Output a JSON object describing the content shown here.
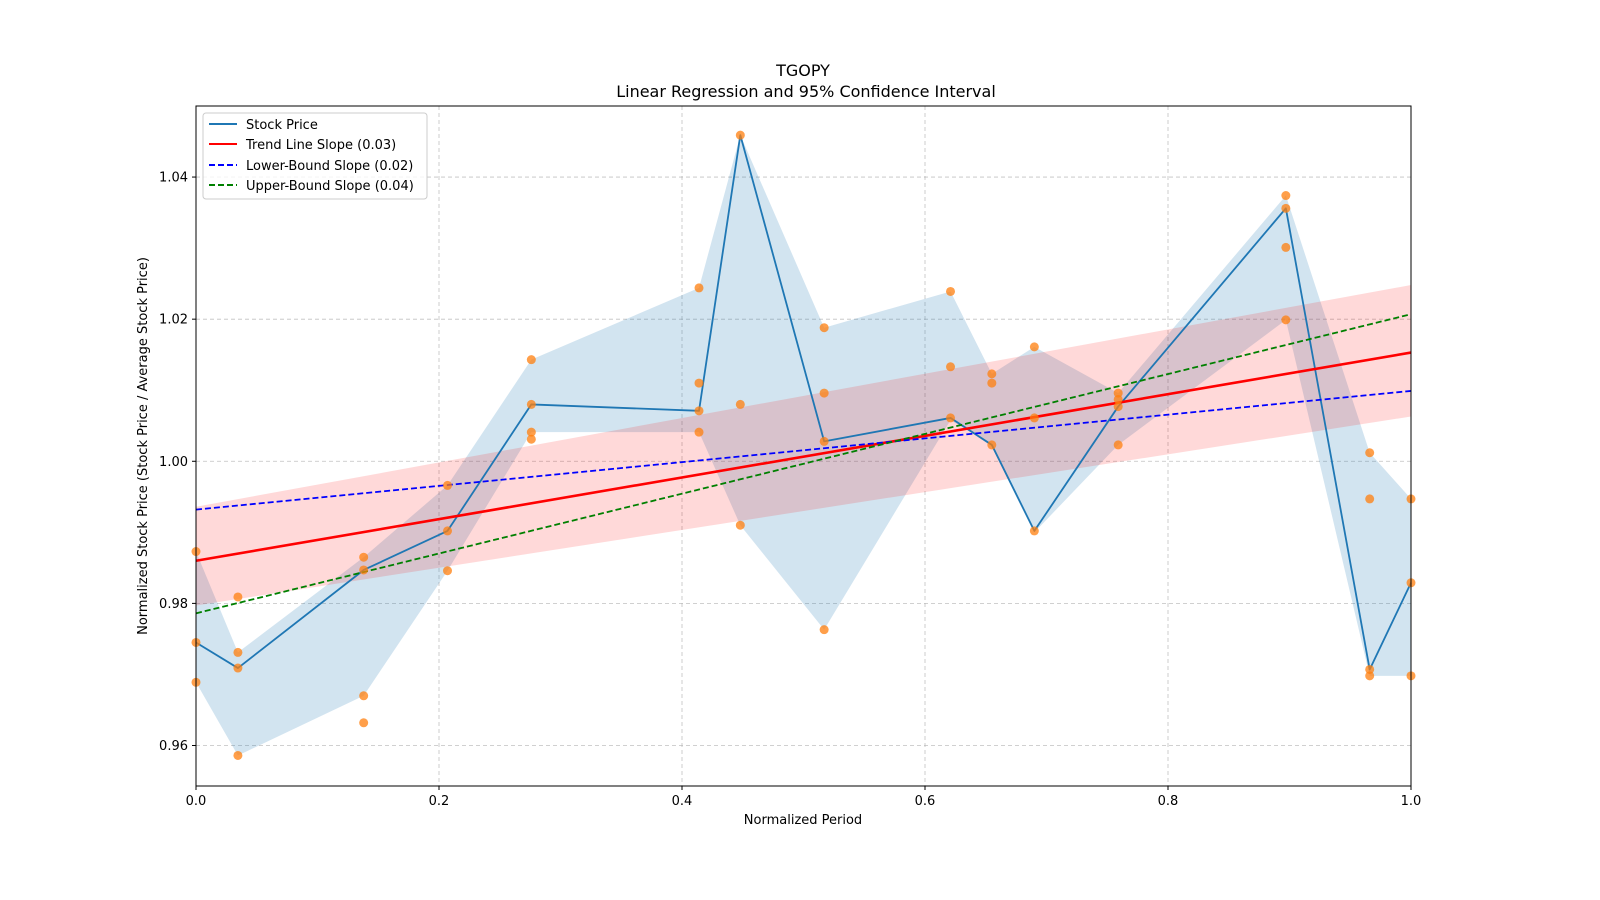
{
  "chart_data": {
    "type": "line",
    "title": "TGOPY",
    "subtitle": "Linear Regression and 95% Confidence Interval",
    "xlabel": "Normalized Period",
    "ylabel": "Normalized Stock Price (Stock Price / Average Stock Price)",
    "xlim": [
      0.0,
      1.0
    ],
    "ylim": [
      0.9543,
      1.05
    ],
    "xticks": [
      0.0,
      0.2,
      0.4,
      0.6,
      0.8,
      1.0
    ],
    "xtick_labels": [
      "0.0",
      "0.2",
      "0.4",
      "0.6",
      "0.8",
      "1.0"
    ],
    "yticks": [
      0.96,
      0.98,
      1.0,
      1.02,
      1.04
    ],
    "ytick_labels": [
      "0.96",
      "0.98",
      "1.00",
      "1.02",
      "1.04"
    ],
    "grid": true,
    "legend_position": "top-left",
    "legend": [
      {
        "label": "Stock Price",
        "color": "#1f77b4",
        "style": "solid"
      },
      {
        "label": "Trend Line Slope (0.03)",
        "color": "#ff0000",
        "style": "solid"
      },
      {
        "label": "Lower-Bound Slope (0.02)",
        "color": "#0000ff",
        "style": "dashed"
      },
      {
        "label": "Upper-Bound Slope (0.04)",
        "color": "#008000",
        "style": "dashed"
      }
    ],
    "series": [
      {
        "name": "Stock Price",
        "color": "#1f77b4",
        "x": [
          0.0,
          0.0345,
          0.138,
          0.207,
          0.276,
          0.414,
          0.448,
          0.517,
          0.621,
          0.655,
          0.69,
          0.759,
          0.897,
          0.966,
          1.0
        ],
        "y": [
          0.9745,
          0.9709,
          0.9847,
          0.9902,
          1.008,
          1.0071,
          1.0459,
          1.0028,
          1.0061,
          1.0023,
          0.9902,
          1.0077,
          1.0356,
          0.9707,
          0.9829
        ]
      },
      {
        "name": "Trend Line Slope (0.03)",
        "color": "#ff0000",
        "x": [
          0.0,
          1.0
        ],
        "y": [
          0.986,
          1.0153
        ]
      },
      {
        "name": "Lower-Bound Slope (0.02)",
        "color": "#0000ff",
        "x": [
          0.0,
          1.0
        ],
        "y": [
          0.9932,
          1.0099
        ]
      },
      {
        "name": "Upper-Bound Slope (0.04)",
        "color": "#008000",
        "x": [
          0.0,
          1.0
        ],
        "y": [
          0.9786,
          1.0207
        ]
      }
    ],
    "price_range_band": {
      "color": "#1f77b4",
      "x": [
        0.0,
        0.0345,
        0.138,
        0.207,
        0.276,
        0.414,
        0.448,
        0.517,
        0.621,
        0.655,
        0.69,
        0.759,
        0.897,
        0.966,
        1.0
      ],
      "lower": [
        0.9689,
        0.9586,
        0.967,
        0.9846,
        1.0041,
        1.0041,
        0.991,
        0.9763,
        1.0058,
        1.0023,
        0.99,
        1.0023,
        1.0199,
        0.9698,
        0.9698
      ],
      "upper": [
        0.9873,
        0.9731,
        0.9865,
        0.9966,
        1.0143,
        1.0244,
        1.0459,
        1.0188,
        1.0239,
        1.0123,
        1.0161,
        1.0096,
        1.0374,
        1.0012,
        0.9947
      ]
    },
    "confidence_band": {
      "color": "#ff0000",
      "x": [
        0.0,
        1.0
      ],
      "lower": [
        0.9797,
        1.0063
      ],
      "upper": [
        0.9936,
        1.0248
      ]
    },
    "scatter": {
      "color": "#ff7f0e",
      "points": [
        [
          0.0,
          0.9873
        ],
        [
          0.0,
          0.9745
        ],
        [
          0.0,
          0.9689
        ],
        [
          0.0345,
          0.9809
        ],
        [
          0.0345,
          0.9731
        ],
        [
          0.0345,
          0.9709
        ],
        [
          0.0345,
          0.9586
        ],
        [
          0.138,
          0.9865
        ],
        [
          0.138,
          0.9847
        ],
        [
          0.138,
          0.967
        ],
        [
          0.138,
          0.9632
        ],
        [
          0.207,
          0.9966
        ],
        [
          0.207,
          0.9902
        ],
        [
          0.207,
          0.9846
        ],
        [
          0.276,
          1.0143
        ],
        [
          0.276,
          1.008
        ],
        [
          0.276,
          1.0041
        ],
        [
          0.276,
          1.0031
        ],
        [
          0.414,
          1.0244
        ],
        [
          0.414,
          1.011
        ],
        [
          0.414,
          1.0071
        ],
        [
          0.414,
          1.0041
        ],
        [
          0.448,
          1.0459
        ],
        [
          0.448,
          1.008
        ],
        [
          0.448,
          0.991
        ],
        [
          0.517,
          1.0188
        ],
        [
          0.517,
          1.0096
        ],
        [
          0.517,
          1.0028
        ],
        [
          0.517,
          0.9763
        ],
        [
          0.621,
          1.0239
        ],
        [
          0.621,
          1.0133
        ],
        [
          0.621,
          1.0061
        ],
        [
          0.655,
          1.0123
        ],
        [
          0.655,
          1.011
        ],
        [
          0.655,
          1.0023
        ],
        [
          0.69,
          1.0161
        ],
        [
          0.69,
          1.0061
        ],
        [
          0.69,
          0.9902
        ],
        [
          0.759,
          1.0096
        ],
        [
          0.759,
          1.0087
        ],
        [
          0.759,
          1.0077
        ],
        [
          0.759,
          1.0023
        ],
        [
          0.897,
          1.0374
        ],
        [
          0.897,
          1.0356
        ],
        [
          0.897,
          1.0301
        ],
        [
          0.897,
          1.0199
        ],
        [
          0.966,
          1.0012
        ],
        [
          0.966,
          0.9947
        ],
        [
          0.966,
          0.9707
        ],
        [
          0.966,
          0.9698
        ],
        [
          1.0,
          0.9947
        ],
        [
          1.0,
          0.9829
        ],
        [
          1.0,
          0.9698
        ]
      ]
    }
  }
}
